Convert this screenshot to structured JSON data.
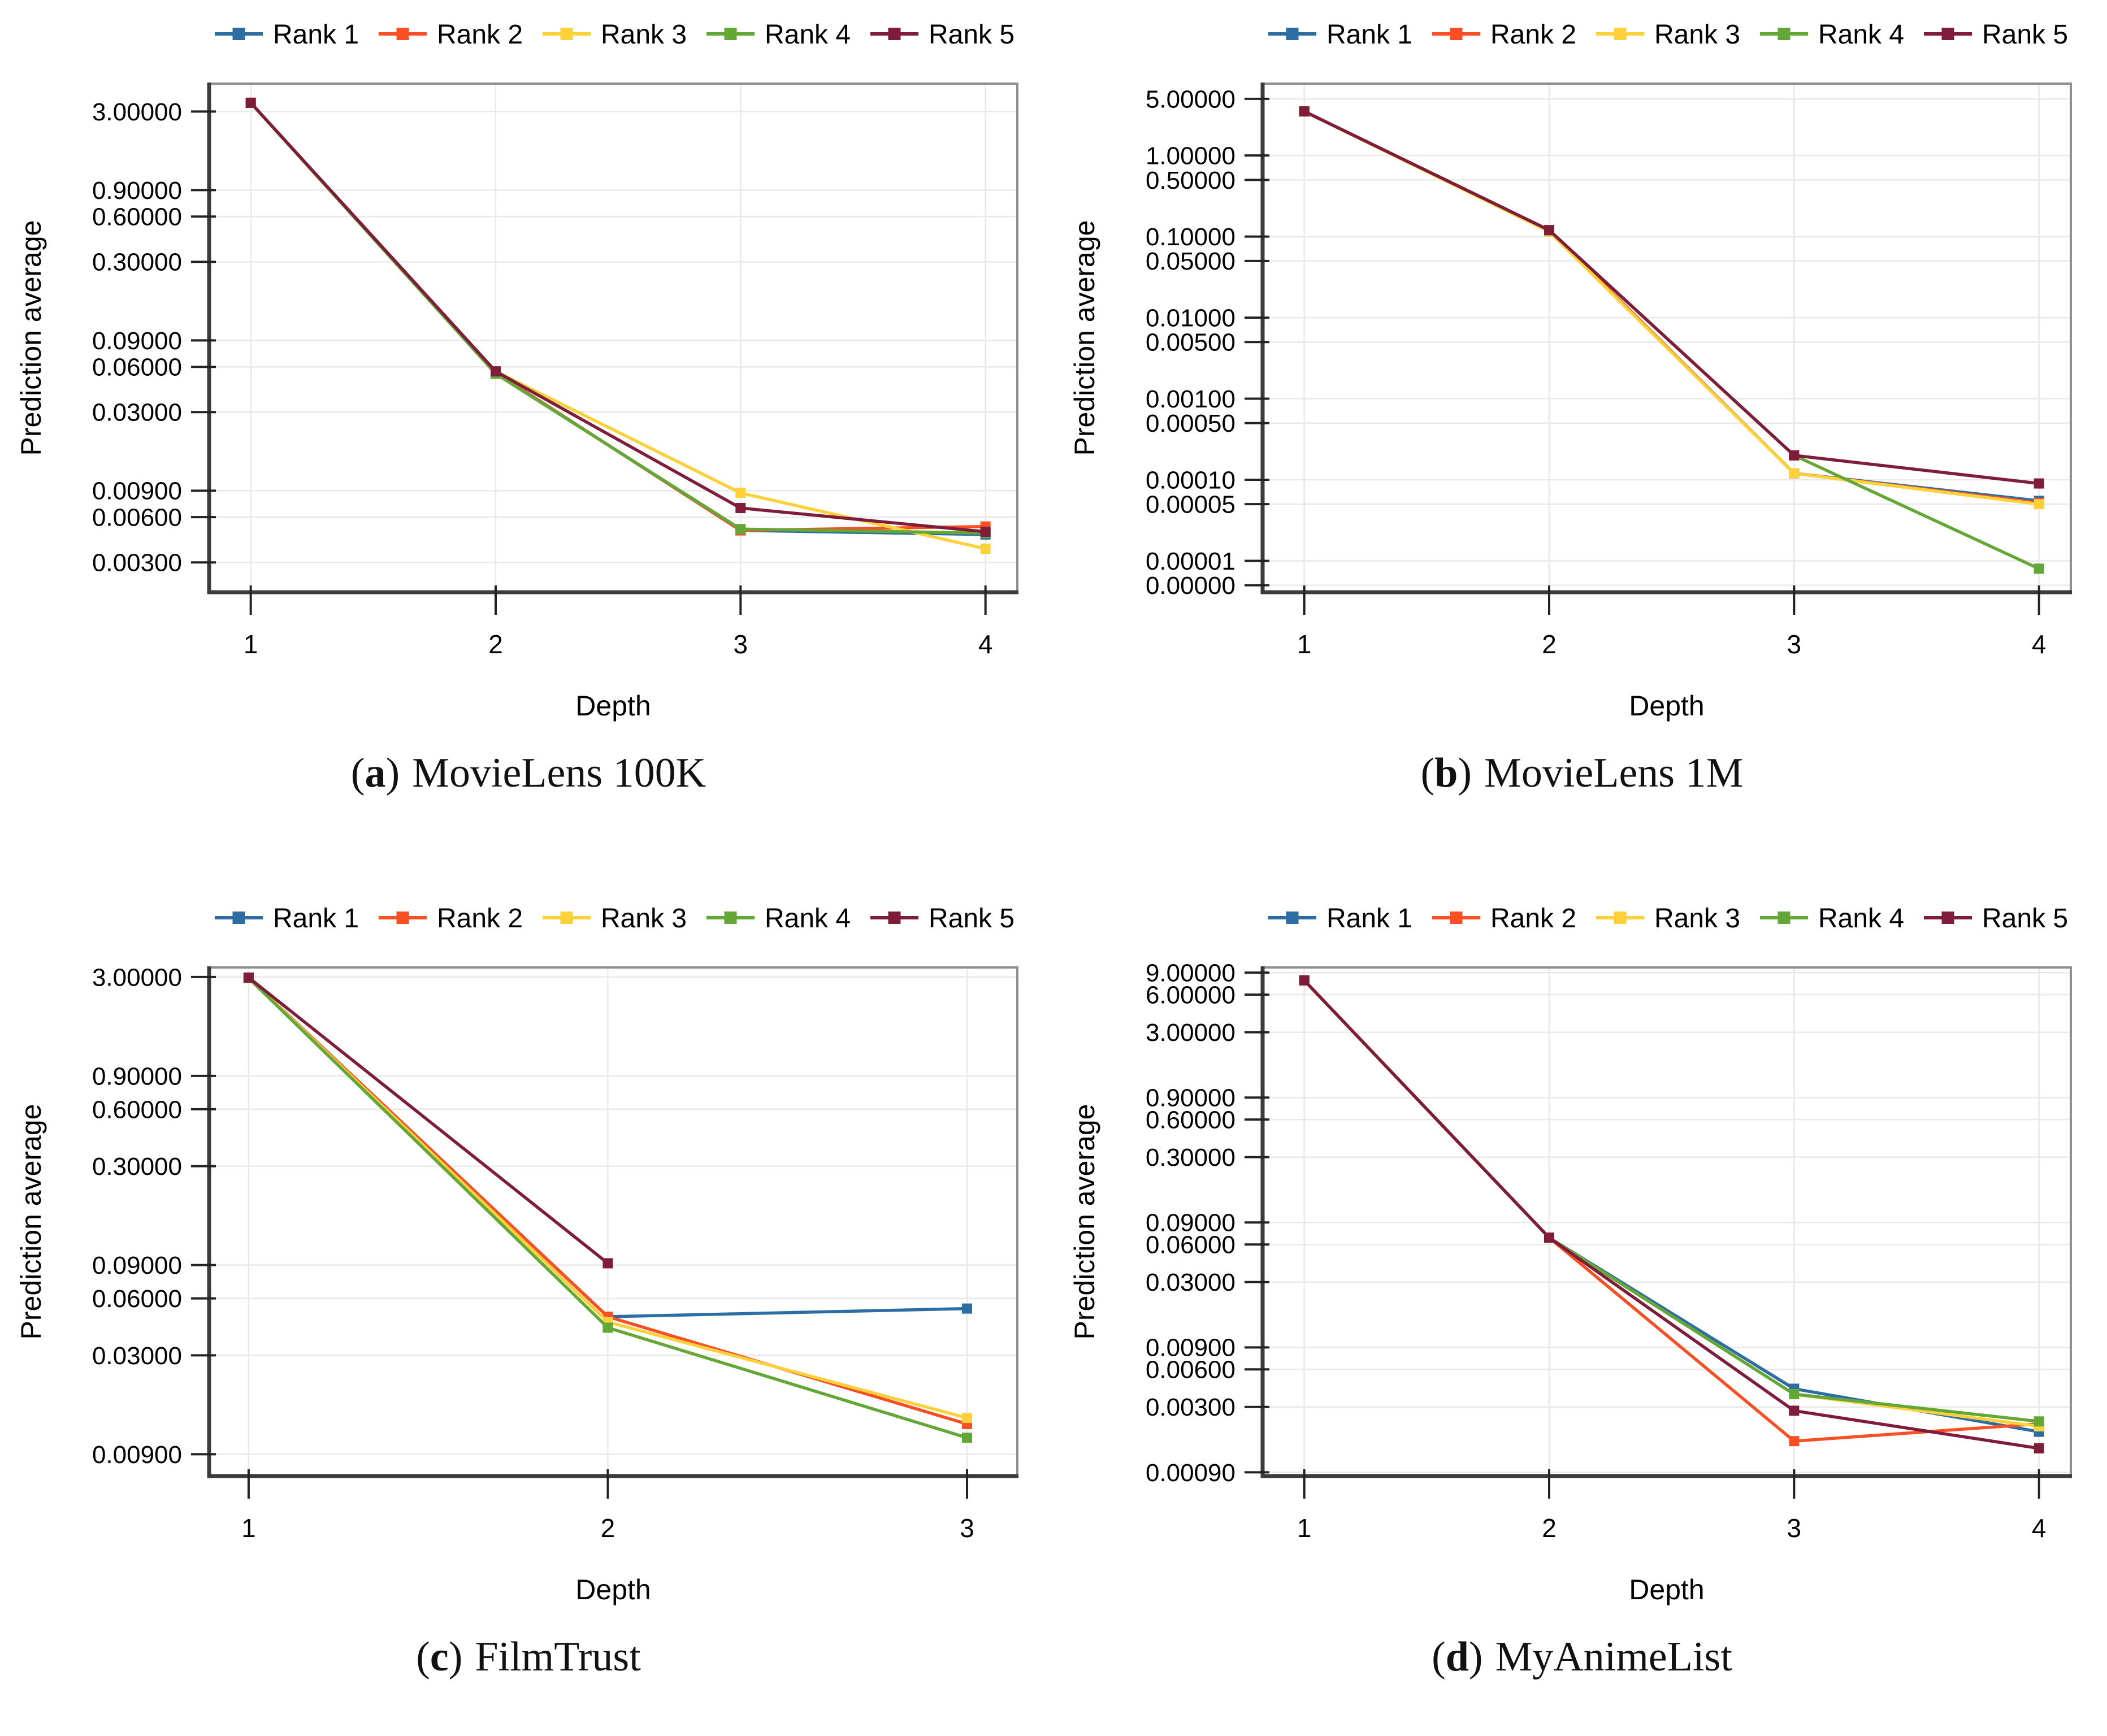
{
  "punct": {
    "open": "(",
    "close": ")"
  },
  "axis_colors": {
    "grid": "#e9e9e9",
    "border": "#8f8f8f",
    "axis": "#3b3b3b",
    "text": "#000000"
  },
  "chart_data": [
    {
      "id": "a",
      "type": "line",
      "caption_prefix": "a",
      "title": "MovieLens 100K",
      "xlabel": "Depth",
      "ylabel": "Prediction average",
      "yscale": "log",
      "grid": true,
      "legend_position": "top",
      "x": [
        1,
        2,
        3,
        4
      ],
      "xticks": [
        "1",
        "2",
        "3",
        "4"
      ],
      "xlim": [
        0.83,
        4.13
      ],
      "ylim_top": 4.6,
      "ylim_bottom": 0.0019,
      "yticks": [
        {
          "v": 3.0,
          "label": "3.00000"
        },
        {
          "v": 0.9,
          "label": "0.90000"
        },
        {
          "v": 0.6,
          "label": "0.60000"
        },
        {
          "v": 0.3,
          "label": "0.30000"
        },
        {
          "v": 0.09,
          "label": "0.09000"
        },
        {
          "v": 0.06,
          "label": "0.06000"
        },
        {
          "v": 0.03,
          "label": "0.03000"
        },
        {
          "v": 0.009,
          "label": "0.00900"
        },
        {
          "v": 0.006,
          "label": "0.00600"
        },
        {
          "v": 0.003,
          "label": "0.00300"
        }
      ],
      "series": [
        {
          "name": "Rank 1",
          "color": "#2c6da4",
          "values": [
            3.43,
            0.055,
            0.0049,
            0.0046
          ]
        },
        {
          "name": "Rank 2",
          "color": "#f94f25",
          "values": [
            3.43,
            0.055,
            0.0049,
            0.0052
          ]
        },
        {
          "name": "Rank 3",
          "color": "#fdd13a",
          "values": [
            3.43,
            0.056,
            0.0087,
            0.0037
          ]
        },
        {
          "name": "Rank 4",
          "color": "#63a837",
          "values": [
            3.43,
            0.054,
            0.005,
            0.0047
          ]
        },
        {
          "name": "Rank 5",
          "color": "#7e1c39",
          "values": [
            3.43,
            0.056,
            0.0069,
            0.0048
          ]
        }
      ]
    },
    {
      "id": "b",
      "type": "line",
      "caption_prefix": "b",
      "title": "MovieLens 1M",
      "xlabel": "Depth",
      "ylabel": "Prediction average",
      "yscale": "log",
      "grid": true,
      "legend_position": "top",
      "x": [
        1,
        2,
        3,
        4
      ],
      "xticks": [
        "1",
        "2",
        "3",
        "4"
      ],
      "xlim": [
        0.83,
        4.13
      ],
      "ylim_top": 7.7,
      "ylim_bottom": 4.1e-06,
      "yticks": [
        {
          "v": 5.0,
          "label": "5.00000"
        },
        {
          "v": 1.0,
          "label": "1.00000"
        },
        {
          "v": 0.5,
          "label": "0.50000"
        },
        {
          "v": 0.1,
          "label": "0.10000"
        },
        {
          "v": 0.05,
          "label": "0.05000"
        },
        {
          "v": 0.01,
          "label": "0.01000"
        },
        {
          "v": 0.005,
          "label": "0.00500"
        },
        {
          "v": 0.001,
          "label": "0.00100"
        },
        {
          "v": 0.0005,
          "label": "0.00050"
        },
        {
          "v": 0.0001,
          "label": "0.00010"
        },
        {
          "v": 5e-05,
          "label": "0.00005"
        },
        {
          "v": 1e-05,
          "label": "0.00001"
        },
        {
          "v": 5e-06,
          "label": "0.00000"
        }
      ],
      "series": [
        {
          "name": "Rank 1",
          "color": "#2c6da4",
          "values": [
            3.5,
            0.12,
            0.00012,
            5.5e-05
          ]
        },
        {
          "name": "Rank 2",
          "color": "#f94f25",
          "values": [
            3.5,
            0.12,
            0.00012,
            5.2e-05
          ]
        },
        {
          "name": "Rank 3",
          "color": "#fdd13a",
          "values": [
            3.5,
            0.115,
            0.00012,
            5e-05
          ]
        },
        {
          "name": "Rank 4",
          "color": "#63a837",
          "values": [
            3.5,
            0.12,
            0.0002,
            8e-06
          ]
        },
        {
          "name": "Rank 5",
          "color": "#7e1c39",
          "values": [
            3.5,
            0.12,
            0.0002,
            9e-05
          ]
        }
      ]
    },
    {
      "id": "c",
      "type": "line",
      "caption_prefix": "c",
      "title": "FilmTrust",
      "xlabel": "Depth",
      "ylabel": "Prediction average",
      "yscale": "log",
      "grid": true,
      "legend_position": "top",
      "x": [
        1,
        2,
        3
      ],
      "xticks": [
        "1",
        "2",
        "3"
      ],
      "xlim": [
        0.89,
        3.14
      ],
      "ylim_top": 3.37,
      "ylim_bottom": 0.0069,
      "yticks": [
        {
          "v": 3.0,
          "label": "3.00000"
        },
        {
          "v": 0.9,
          "label": "0.90000"
        },
        {
          "v": 0.6,
          "label": "0.60000"
        },
        {
          "v": 0.3,
          "label": "0.30000"
        },
        {
          "v": 0.09,
          "label": "0.09000"
        },
        {
          "v": 0.06,
          "label": "0.06000"
        },
        {
          "v": 0.03,
          "label": "0.03000"
        },
        {
          "v": 0.009,
          "label": "0.00900"
        }
      ],
      "series": [
        {
          "name": "Rank 1",
          "color": "#2c6da4",
          "values": [
            2.97,
            0.048,
            0.053
          ]
        },
        {
          "name": "Rank 2",
          "color": "#f94f25",
          "values": [
            2.97,
            0.048,
            0.013
          ]
        },
        {
          "name": "Rank 3",
          "color": "#fdd13a",
          "values": [
            2.97,
            0.045,
            0.014
          ]
        },
        {
          "name": "Rank 4",
          "color": "#63a837",
          "values": [
            2.96,
            0.042,
            0.011
          ]
        },
        {
          "name": "Rank 5",
          "color": "#7e1c39",
          "values": [
            2.98,
            0.092
          ]
        }
      ]
    },
    {
      "id": "d",
      "type": "line",
      "caption_prefix": "d",
      "title": "MyAnimeList",
      "xlabel": "Depth",
      "ylabel": "Prediction average",
      "yscale": "log",
      "grid": true,
      "legend_position": "top",
      "x": [
        1,
        2,
        3,
        4
      ],
      "xticks": [
        "1",
        "2",
        "3",
        "4"
      ],
      "xlim": [
        0.83,
        4.13
      ],
      "ylim_top": 9.9,
      "ylim_bottom": 0.00084,
      "yticks": [
        {
          "v": 9.0,
          "label": "9.00000"
        },
        {
          "v": 6.0,
          "label": "6.00000"
        },
        {
          "v": 3.0,
          "label": "3.00000"
        },
        {
          "v": 0.9,
          "label": "0.90000"
        },
        {
          "v": 0.6,
          "label": "0.60000"
        },
        {
          "v": 0.3,
          "label": "0.30000"
        },
        {
          "v": 0.09,
          "label": "0.09000"
        },
        {
          "v": 0.06,
          "label": "0.06000"
        },
        {
          "v": 0.03,
          "label": "0.03000"
        },
        {
          "v": 0.009,
          "label": "0.00900"
        },
        {
          "v": 0.006,
          "label": "0.00600"
        },
        {
          "v": 0.003,
          "label": "0.00300"
        },
        {
          "v": 0.0009,
          "label": "0.00090"
        }
      ],
      "series": [
        {
          "name": "Rank 1",
          "color": "#2c6da4",
          "values": [
            7.8,
            0.068,
            0.0042,
            0.0019
          ]
        },
        {
          "name": "Rank 2",
          "color": "#f94f25",
          "values": [
            7.8,
            0.068,
            0.0016,
            0.0022
          ]
        },
        {
          "name": "Rank 3",
          "color": "#fdd13a",
          "values": [
            7.8,
            0.068,
            0.0038,
            0.0021
          ]
        },
        {
          "name": "Rank 4",
          "color": "#63a837",
          "values": [
            7.8,
            0.068,
            0.0038,
            0.0023
          ]
        },
        {
          "name": "Rank 5",
          "color": "#7e1c39",
          "values": [
            7.8,
            0.068,
            0.0028,
            0.0014
          ]
        }
      ]
    }
  ]
}
